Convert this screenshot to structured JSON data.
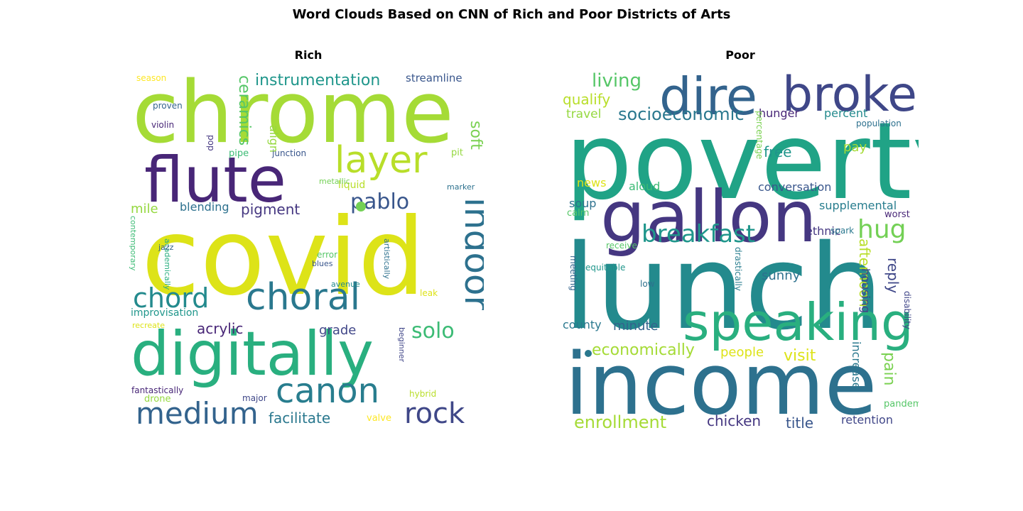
{
  "figure_title": "Word Clouds Based on CNN of Rich and Poor Districts of Arts",
  "panels": [
    {
      "title": "Rich",
      "words": [
        {
          "text": "chrome",
          "color": "#a5db36"
        },
        {
          "text": "covid",
          "color": "#dde318"
        },
        {
          "text": "flute",
          "color": "#482677"
        },
        {
          "text": "digitally",
          "color": "#29af7f"
        },
        {
          "text": "choral",
          "color": "#2a788e"
        },
        {
          "text": "layer",
          "color": "#b8de29"
        },
        {
          "text": "canon",
          "color": "#287d8e"
        },
        {
          "text": "medium",
          "color": "#33638d"
        },
        {
          "text": "rock",
          "color": "#3f4788"
        },
        {
          "text": "indoor",
          "color": "#2d718e"
        },
        {
          "text": "chord",
          "color": "#238a8d"
        },
        {
          "text": "pablo",
          "color": "#39568c"
        },
        {
          "text": "solo",
          "color": "#3cbb75"
        },
        {
          "text": "instrumentation",
          "color": "#1f968b"
        },
        {
          "text": "ceramics",
          "color": "#55c667"
        },
        {
          "text": "soft",
          "color": "#7ad151"
        },
        {
          "text": "pigment",
          "color": "#453781"
        },
        {
          "text": "blending",
          "color": "#2d718e"
        },
        {
          "text": "acrylic",
          "color": "#482677"
        },
        {
          "text": "grade",
          "color": "#404688"
        },
        {
          "text": "facilitate",
          "color": "#2a788e"
        },
        {
          "text": "mile",
          "color": "#95d840"
        },
        {
          "text": "align",
          "color": "#95d840"
        },
        {
          "text": "streamline",
          "color": "#39568c"
        },
        {
          "text": "improvisation",
          "color": "#1f968b"
        },
        {
          "text": "season",
          "color": "#fde725"
        },
        {
          "text": "proven",
          "color": "#33638d"
        },
        {
          "text": "violin",
          "color": "#482677"
        },
        {
          "text": "pop",
          "color": "#453781"
        },
        {
          "text": "pipe",
          "color": "#3cbb75"
        },
        {
          "text": "junction",
          "color": "#39568c"
        },
        {
          "text": "pit",
          "color": "#95d840"
        },
        {
          "text": "liquid",
          "color": "#b8de29"
        },
        {
          "text": "metallic",
          "color": "#73d055"
        },
        {
          "text": "marker",
          "color": "#2d718e"
        },
        {
          "text": "contemporary",
          "color": "#3cbb75"
        },
        {
          "text": "academically",
          "color": "#29af7f"
        },
        {
          "text": "jazz",
          "color": "#33638d"
        },
        {
          "text": "error",
          "color": "#55c667"
        },
        {
          "text": "blues",
          "color": "#39568c"
        },
        {
          "text": "artistically",
          "color": "#2d718e"
        },
        {
          "text": "avenue",
          "color": "#238a8d"
        },
        {
          "text": "leak",
          "color": "#dde318"
        },
        {
          "text": "recreate",
          "color": "#dde318"
        },
        {
          "text": "beginner",
          "color": "#404688"
        },
        {
          "text": "fantastically",
          "color": "#482677"
        },
        {
          "text": "drone",
          "color": "#95d840"
        },
        {
          "text": "major",
          "color": "#3f4788"
        },
        {
          "text": "hybrid",
          "color": "#b8de29"
        },
        {
          "text": "valve",
          "color": "#fde725"
        }
      ]
    },
    {
      "title": "Poor",
      "words": [
        {
          "text": "poverty",
          "color": "#20a386"
        },
        {
          "text": "lunch",
          "color": "#238a8d"
        },
        {
          "text": "income",
          "color": "#2d718e"
        },
        {
          "text": "gallon",
          "color": "#453781"
        },
        {
          "text": "dire",
          "color": "#33638d"
        },
        {
          "text": "broke",
          "color": "#3f4788"
        },
        {
          "text": "speaking",
          "color": "#29af7f"
        },
        {
          "text": "breakfast",
          "color": "#1f968b"
        },
        {
          "text": "living",
          "color": "#55c667"
        },
        {
          "text": "socioeconomic",
          "color": "#2a788e"
        },
        {
          "text": "qualify",
          "color": "#b8de29"
        },
        {
          "text": "travel",
          "color": "#95d840"
        },
        {
          "text": "hunger",
          "color": "#482677"
        },
        {
          "text": "percent",
          "color": "#238a8d"
        },
        {
          "text": "population",
          "color": "#2d718e"
        },
        {
          "text": "percentage",
          "color": "#7ad151"
        },
        {
          "text": "free",
          "color": "#1f968b"
        },
        {
          "text": "pay",
          "color": "#a5db36"
        },
        {
          "text": "news",
          "color": "#dde318"
        },
        {
          "text": "aloud",
          "color": "#3cbb75"
        },
        {
          "text": "conversation",
          "color": "#39568c"
        },
        {
          "text": "soup",
          "color": "#2d718e"
        },
        {
          "text": "supplemental",
          "color": "#287d8e"
        },
        {
          "text": "calm",
          "color": "#55c667"
        },
        {
          "text": "worst",
          "color": "#482677"
        },
        {
          "text": "hug",
          "color": "#73d055"
        },
        {
          "text": "ethnic",
          "color": "#453781"
        },
        {
          "text": "spark",
          "color": "#2a788e"
        },
        {
          "text": "receive",
          "color": "#55c667"
        },
        {
          "text": "drastically",
          "color": "#287d8e"
        },
        {
          "text": "meeting",
          "color": "#33638d"
        },
        {
          "text": "equitable",
          "color": "#1f968b"
        },
        {
          "text": "low",
          "color": "#2d718e"
        },
        {
          "text": "sunny",
          "color": "#2d718e"
        },
        {
          "text": "afternoon",
          "color": "#b8de29"
        },
        {
          "text": "housing",
          "color": "#404688"
        },
        {
          "text": "reply",
          "color": "#3f4788"
        },
        {
          "text": "disability",
          "color": "#404688"
        },
        {
          "text": "county",
          "color": "#2a788e"
        },
        {
          "text": "minute",
          "color": "#33638d"
        },
        {
          "text": "economically",
          "color": "#a5db36"
        },
        {
          "text": "people",
          "color": "#dde318"
        },
        {
          "text": "visit",
          "color": "#dde318"
        },
        {
          "text": "increase",
          "color": "#2a788e"
        },
        {
          "text": "pain",
          "color": "#7ad151"
        },
        {
          "text": "pandemic",
          "color": "#55c667"
        },
        {
          "text": "enrollment",
          "color": "#a5db36"
        },
        {
          "text": "chicken",
          "color": "#453781"
        },
        {
          "text": "title",
          "color": "#39568c"
        },
        {
          "text": "retention",
          "color": "#404688"
        }
      ]
    }
  ]
}
